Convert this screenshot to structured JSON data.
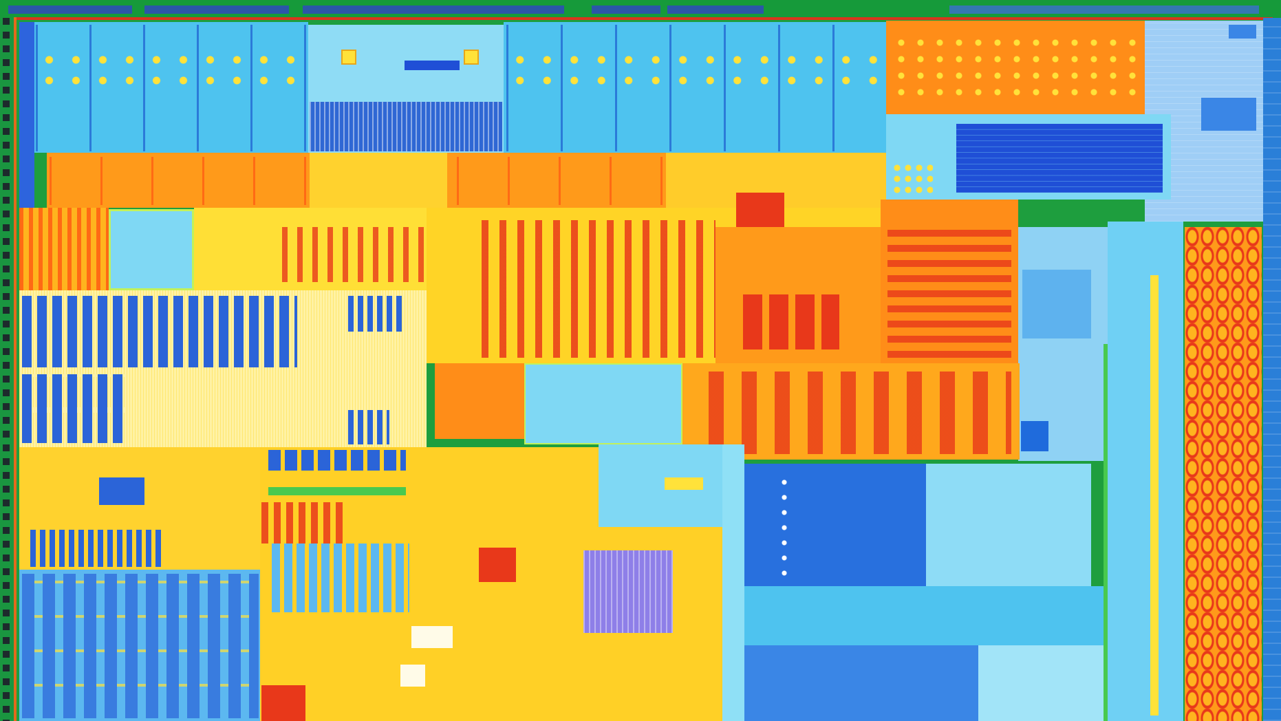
{
  "image": {
    "kind": "processor-die-photo",
    "palette": {
      "border": "#1e9e3e",
      "edge_red": "#d9351d",
      "pad_dark": "#222a2f",
      "blue_deep": "#1f4fd6",
      "blue_mid": "#3aa3ee",
      "cyan": "#6fd8f5",
      "cyan_light": "#a8eefb",
      "yellow": "#ffe23a",
      "yellow_pale": "#fff5a0",
      "orange": "#ffb41e",
      "orange_red": "#ff7a16",
      "red": "#e8381a",
      "pale_blue": "#9fd2f7"
    }
  }
}
